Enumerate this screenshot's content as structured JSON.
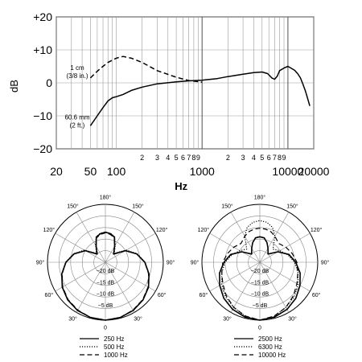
{
  "chart_data": [
    {
      "type": "line",
      "xscale": "log",
      "xlim": [
        20,
        20000
      ],
      "ylim": [
        -20,
        20
      ],
      "ylabel": "dB",
      "xlabel": "Hz",
      "ytick_labels": [
        "+20",
        "+10",
        "0",
        "−10",
        "−20"
      ],
      "ytick_values": [
        20,
        10,
        0,
        -10,
        -20
      ],
      "xtick_major": [
        {
          "value": 20,
          "label": "20"
        },
        {
          "value": 50,
          "label": "50"
        },
        {
          "value": 100,
          "label": "100"
        },
        {
          "value": 1000,
          "label": "1000"
        },
        {
          "value": 10000,
          "label": "10000"
        },
        {
          "value": 20000,
          "label": "20000"
        }
      ],
      "xtick_minor": [
        {
          "value": 200,
          "label": "2"
        },
        {
          "value": 300,
          "label": "3"
        },
        {
          "value": 400,
          "label": "4"
        },
        {
          "value": 500,
          "label": "5"
        },
        {
          "value": 600,
          "label": "6"
        },
        {
          "value": 700,
          "label": "7"
        },
        {
          "value": 800,
          "label": "8"
        },
        {
          "value": 900,
          "label": "9"
        },
        {
          "value": 2000,
          "label": "2"
        },
        {
          "value": 3000,
          "label": "3"
        },
        {
          "value": 4000,
          "label": "4"
        },
        {
          "value": 5000,
          "label": "5"
        },
        {
          "value": 6000,
          "label": "6"
        },
        {
          "value": 7000,
          "label": "7"
        },
        {
          "value": 8000,
          "label": "8"
        },
        {
          "value": 9000,
          "label": "9"
        }
      ],
      "series": [
        {
          "name": "60.6 mm (2 ft.)",
          "style": "solid",
          "x": [
            50,
            60,
            70,
            80,
            90,
            100,
            120,
            150,
            200,
            300,
            500,
            700,
            1000,
            1500,
            2000,
            3000,
            4000,
            5000,
            5800,
            6500,
            7000,
            7500,
            8000,
            9000,
            10000,
            11000,
            12000,
            13000,
            14000,
            15000,
            16000,
            17000,
            18000
          ],
          "y": [
            -13,
            -10,
            -7.5,
            -5.5,
            -4.5,
            -4.2,
            -3.5,
            -2.3,
            -1.3,
            -0.3,
            0.3,
            0.6,
            0.8,
            1.3,
            1.9,
            2.6,
            3.1,
            3.3,
            2.8,
            1.5,
            1.1,
            2,
            3.7,
            4.5,
            5,
            4.4,
            3.8,
            2.8,
            1.5,
            -0.5,
            -2.5,
            -4.8,
            -7
          ]
        },
        {
          "name": "1 cm (3/8 in.)",
          "style": "dashed",
          "x": [
            50,
            60,
            70,
            80,
            100,
            120,
            150,
            200,
            300,
            500,
            700,
            1000
          ],
          "y": [
            1.5,
            3.5,
            5,
            6.2,
            7.5,
            8,
            7.5,
            6.2,
            3.7,
            1.7,
            0.7,
            0.2
          ]
        }
      ]
    },
    {
      "type": "polar",
      "angle_labels": [
        "180°",
        "150°",
        "120°",
        "90°",
        "60°",
        "30°",
        "0",
        "30°",
        "60°",
        "90°",
        "120°",
        "150°"
      ],
      "ring_labels": [
        "−20 dB",
        "−15 dB",
        "−10 dB",
        "−5 dB"
      ],
      "rlim": [
        -25,
        0
      ],
      "series": [
        {
          "name": "250 Hz",
          "style": "solid",
          "angle": [
            0,
            15,
            30,
            45,
            60,
            75,
            90,
            105,
            120,
            135,
            150,
            160,
            170,
            180
          ],
          "db": [
            0,
            -0.3,
            -1,
            -2,
            -3.5,
            -5.5,
            -8,
            -11,
            -15,
            -20,
            -17,
            -13.5,
            -12.5,
            -12
          ]
        },
        {
          "name": "500 Hz",
          "style": "dotted",
          "angle": [
            0,
            15,
            30,
            45,
            60,
            75,
            90,
            105,
            120,
            135,
            150,
            160,
            170,
            180
          ],
          "db": [
            0,
            -0.3,
            -1,
            -2,
            -3.5,
            -5.5,
            -7.8,
            -10.8,
            -14.5,
            -19.5,
            -16.5,
            -13.3,
            -12.3,
            -12
          ]
        },
        {
          "name": "1000 Hz",
          "style": "dashed",
          "angle": [
            0,
            15,
            30,
            45,
            60,
            75,
            90,
            105,
            120,
            135,
            150,
            160,
            170,
            180
          ],
          "db": [
            0,
            -0.3,
            -1.2,
            -2.2,
            -3.7,
            -5.7,
            -8,
            -11,
            -15,
            -20,
            -17,
            -13.8,
            -12.8,
            -12.3
          ]
        }
      ]
    },
    {
      "type": "polar",
      "angle_labels": [
        "180°",
        "150°",
        "120°",
        "90°",
        "60°",
        "30°",
        "0",
        "30°",
        "60°",
        "90°",
        "120°",
        "150°"
      ],
      "ring_labels": [
        "−20 dB",
        "−15 dB",
        "−10 dB",
        "−5 dB"
      ],
      "rlim": [
        -25,
        0
      ],
      "series": [
        {
          "name": "2500 Hz",
          "style": "solid",
          "angle": [
            0,
            15,
            30,
            45,
            60,
            75,
            90,
            105,
            120,
            135,
            150,
            160,
            170,
            180
          ],
          "db": [
            0,
            -0.5,
            -1.5,
            -3,
            -5,
            -7,
            -9.5,
            -12,
            -16,
            -20,
            -18,
            -16,
            -14.3,
            -14
          ]
        },
        {
          "name": "6300 Hz",
          "style": "dotted",
          "angle": [
            0,
            15,
            30,
            45,
            60,
            75,
            90,
            105,
            120,
            135,
            150,
            160,
            170,
            180
          ],
          "db": [
            0,
            -0.8,
            -2.5,
            -4,
            -6,
            -8,
            -10,
            -12.5,
            -15,
            -17,
            -12,
            -9,
            -7.5,
            -7
          ]
        },
        {
          "name": "10000 Hz",
          "style": "dashed",
          "angle": [
            0,
            15,
            30,
            45,
            60,
            75,
            90,
            105,
            120,
            135,
            150,
            160,
            170,
            180
          ],
          "db": [
            0,
            -1,
            -2.5,
            -4.5,
            -6.5,
            -8,
            -9,
            -10.5,
            -12,
            -13.5,
            -12,
            -11,
            -10.5,
            -10.3
          ]
        }
      ]
    }
  ]
}
